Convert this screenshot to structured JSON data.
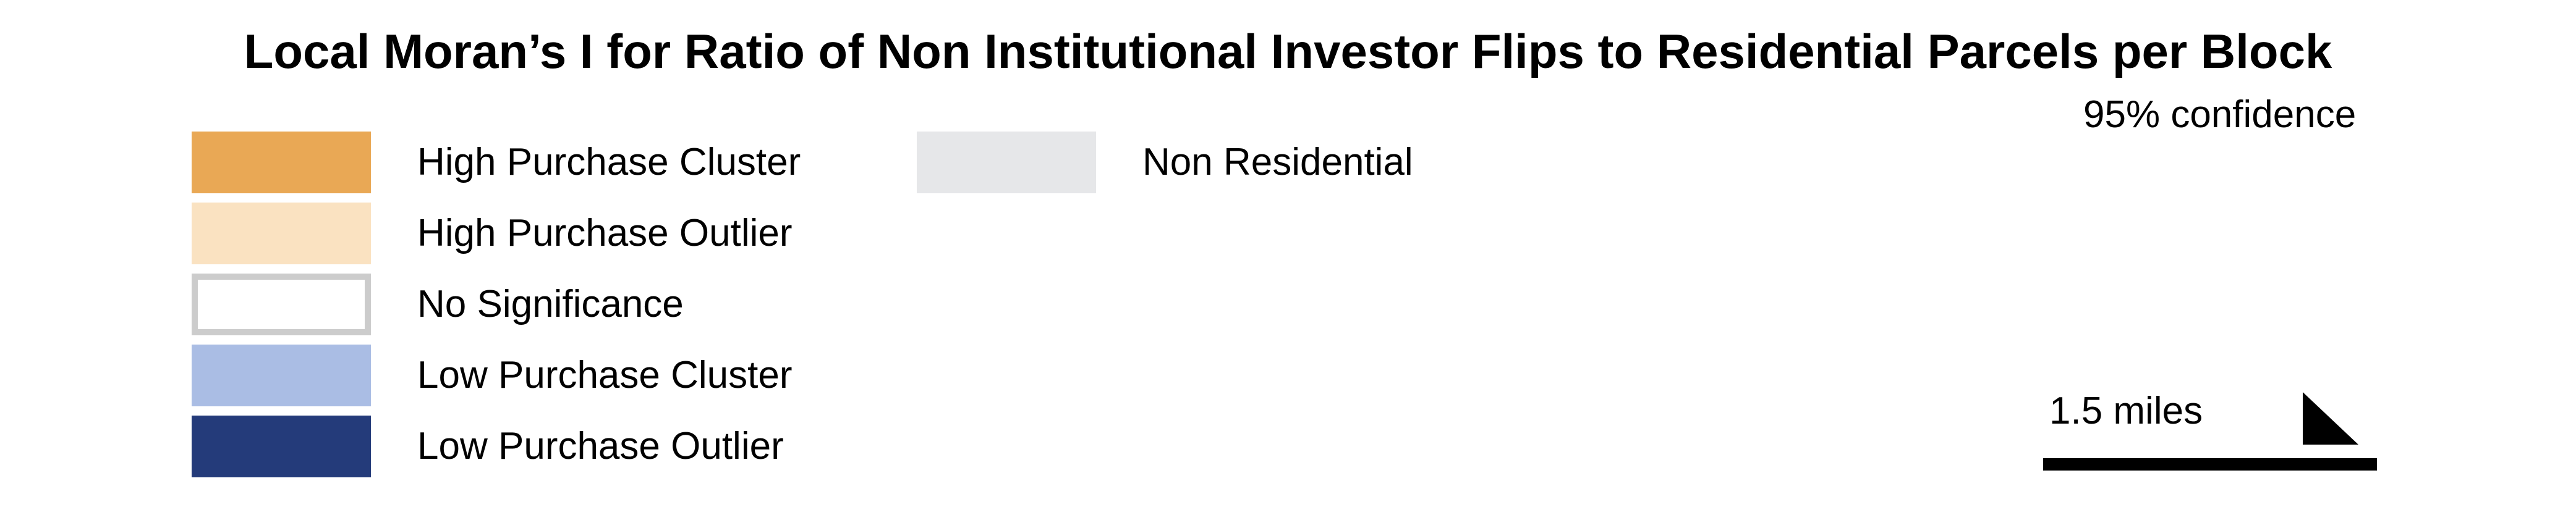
{
  "title": "Local Moran’s I for Ratio of Non Institutional Investor Flips to Residential Parcels per Block",
  "confidence_note": "95% confidence",
  "legend": {
    "items": [
      {
        "label": "High Purchase Cluster",
        "color": "#e9a855"
      },
      {
        "label": "High Purchase Outlier",
        "color": "#fae2c1"
      },
      {
        "label": "No Significance",
        "color": "#ffffff",
        "border": "#cccccc"
      },
      {
        "label": "Low Purchase Cluster",
        "color": "#aabde4"
      },
      {
        "label": "Low Purchase Outlier",
        "color": "#243b7a"
      },
      {
        "label": "Non Residential",
        "color": "#e6e7e9"
      }
    ]
  },
  "scale_bar": {
    "label": "1.5 miles"
  },
  "icons": {
    "north_arrow": "north-arrow-icon"
  }
}
